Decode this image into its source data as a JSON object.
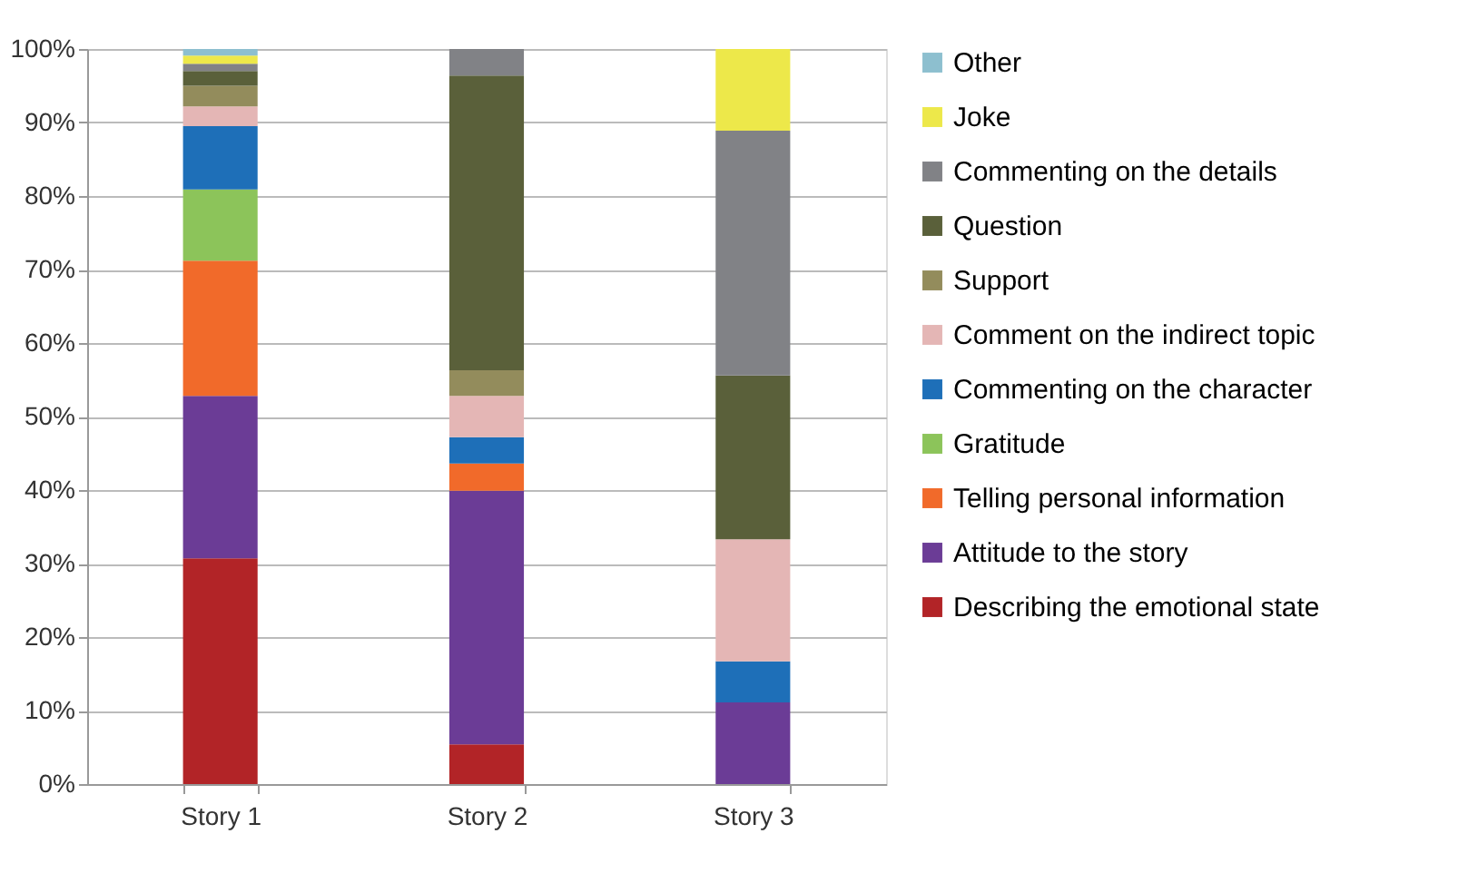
{
  "chart_data": {
    "type": "bar",
    "stacked": true,
    "categories": [
      "Story 1",
      "Story 2",
      "Story 3"
    ],
    "series": [
      {
        "name": "Describing the emotional state",
        "color": "#b22427",
        "values": [
          30.7,
          5.4,
          null
        ]
      },
      {
        "name": "Attitude to the story",
        "color": "#6b3c96",
        "values": [
          22.1,
          34.5,
          11.1
        ]
      },
      {
        "name": "Telling personal information",
        "color": "#f16a2a",
        "values": [
          18.4,
          3.7,
          null
        ]
      },
      {
        "name": "Gratitude",
        "color": "#8cc45a",
        "values": [
          9.7,
          null,
          null
        ]
      },
      {
        "name": "Commenting on the character",
        "color": "#1e6fb8",
        "values": [
          8.6,
          3.6,
          5.6
        ]
      },
      {
        "name": "Comment on the indirect topic",
        "color": "#e4b6b5",
        "values": [
          2.7,
          5.6,
          16.6
        ]
      },
      {
        "name": "Support",
        "color": "#938c5c",
        "values": [
          2.8,
          3.5,
          null
        ]
      },
      {
        "name": "Question",
        "color": "#5a603a",
        "values": [
          2.0,
          40.1,
          22.3
        ]
      },
      {
        "name": "Commenting on the details",
        "color": "#818286",
        "values": [
          1.0,
          3.6,
          33.3
        ]
      },
      {
        "name": "Joke",
        "color": "#ede84a",
        "values": [
          1.1,
          null,
          11.1
        ]
      },
      {
        "name": "Other",
        "color": "#8dbfcf",
        "values": [
          0.9,
          null,
          null
        ]
      }
    ],
    "ylim": [
      0,
      100
    ],
    "yticks": [
      {
        "value": 0,
        "label": "0%"
      },
      {
        "value": 10,
        "label": "10%"
      },
      {
        "value": 20,
        "label": "20%"
      },
      {
        "value": 30,
        "label": "30%"
      },
      {
        "value": 40,
        "label": "40%"
      },
      {
        "value": 50,
        "label": "50%"
      },
      {
        "value": 60,
        "label": "60%"
      },
      {
        "value": 70,
        "label": "70%"
      },
      {
        "value": 80,
        "label": "80%"
      },
      {
        "value": 90,
        "label": "90%"
      },
      {
        "value": 100,
        "label": "100%"
      }
    ],
    "grid": "y",
    "legend": "right"
  }
}
